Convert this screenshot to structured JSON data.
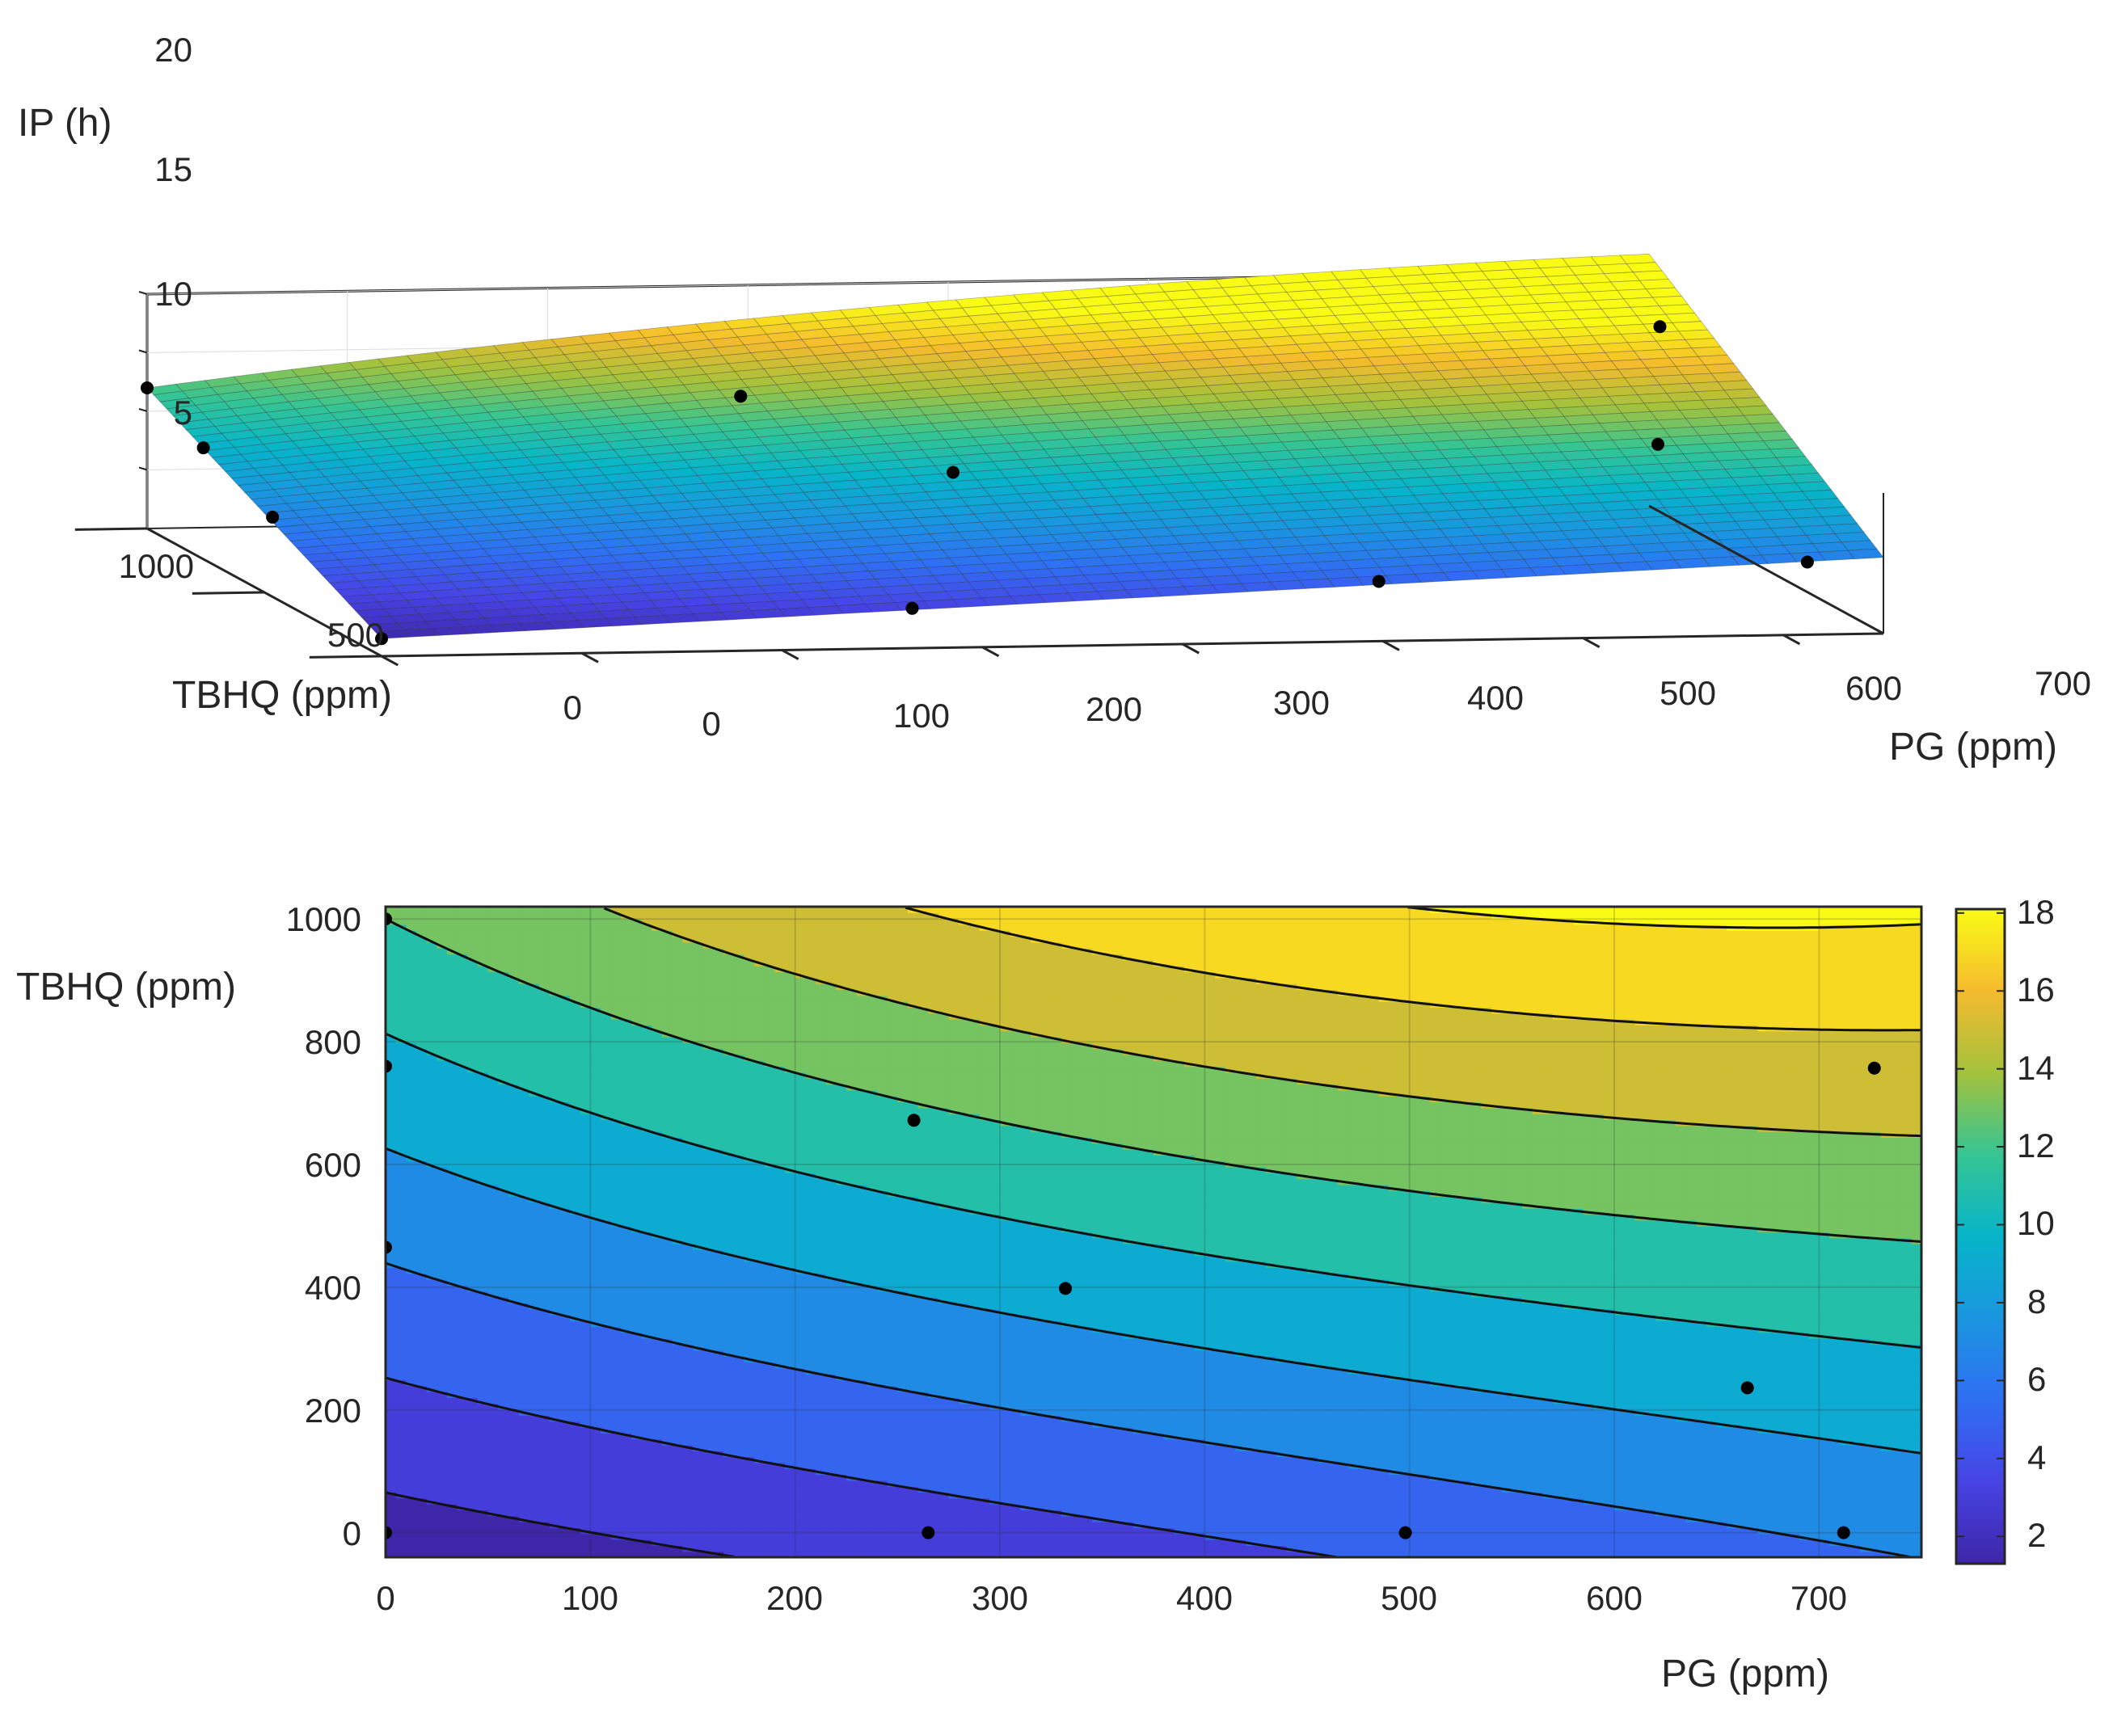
{
  "chart_data": [
    {
      "type": "surface",
      "zlabel": "IP (h)",
      "xlabel": "PG (ppm)",
      "ylabel": "TBHQ (ppm)",
      "xlim": [
        0,
        750
      ],
      "ylim": [
        0,
        1000
      ],
      "zlim": [
        0,
        20
      ],
      "xticks": [
        "0",
        "100",
        "200",
        "300",
        "400",
        "500",
        "600",
        "700"
      ],
      "yticks": [
        "0",
        "500",
        "1000"
      ],
      "zticks": [
        "5",
        "10",
        "15",
        "20"
      ],
      "surface_corners": {
        "pg0_tbhq0": 1.5,
        "pg0_tbhq1000": 12.0,
        "pg750_tbhq0": 6.5,
        "pg_max_ridge_tbhq1000": 19.8
      },
      "points": [
        {
          "pg": 0,
          "tbhq": 1000,
          "ip": 12.0
        },
        {
          "pg": 0,
          "tbhq": 760,
          "ip": 9.5
        },
        {
          "pg": 0,
          "tbhq": 465,
          "ip": 6.8
        },
        {
          "pg": 0,
          "tbhq": 0,
          "ip": 1.5
        },
        {
          "pg": 258,
          "tbhq": 672,
          "ip": 14.2
        },
        {
          "pg": 332,
          "tbhq": 398,
          "ip": 10.5
        },
        {
          "pg": 265,
          "tbhq": 0,
          "ip": 3.4
        },
        {
          "pg": 498,
          "tbhq": 0,
          "ip": 5.1
        },
        {
          "pg": 665,
          "tbhq": 236,
          "ip": 13.8
        },
        {
          "pg": 712,
          "tbhq": 0,
          "ip": 6.2
        },
        {
          "pg": 727,
          "tbhq": 757,
          "ip": 18.0
        }
      ]
    },
    {
      "type": "contour",
      "xlabel": "PG (ppm)",
      "ylabel": "TBHQ (ppm)",
      "xlim": [
        0,
        750
      ],
      "ylim": [
        -40,
        1020
      ],
      "xticks": [
        "0",
        "100",
        "200",
        "300",
        "400",
        "500",
        "600",
        "700"
      ],
      "yticks": [
        "0",
        "200",
        "400",
        "600",
        "800",
        "1000"
      ],
      "colorbar": {
        "range": [
          1.3,
          18.1
        ],
        "ticks": [
          "2",
          "4",
          "6",
          "8",
          "10",
          "12",
          "14",
          "16",
          "18"
        ]
      },
      "levels": [
        2,
        4,
        6,
        8,
        10,
        12,
        14,
        16,
        18
      ],
      "grid": true,
      "points": [
        {
          "pg": 0,
          "tbhq": 1000
        },
        {
          "pg": 0,
          "tbhq": 760
        },
        {
          "pg": 0,
          "tbhq": 465
        },
        {
          "pg": 0,
          "tbhq": 0
        },
        {
          "pg": 258,
          "tbhq": 672
        },
        {
          "pg": 332,
          "tbhq": 398
        },
        {
          "pg": 265,
          "tbhq": 0
        },
        {
          "pg": 498,
          "tbhq": 0
        },
        {
          "pg": 665,
          "tbhq": 236
        },
        {
          "pg": 712,
          "tbhq": 0
        },
        {
          "pg": 727,
          "tbhq": 757
        }
      ]
    }
  ]
}
